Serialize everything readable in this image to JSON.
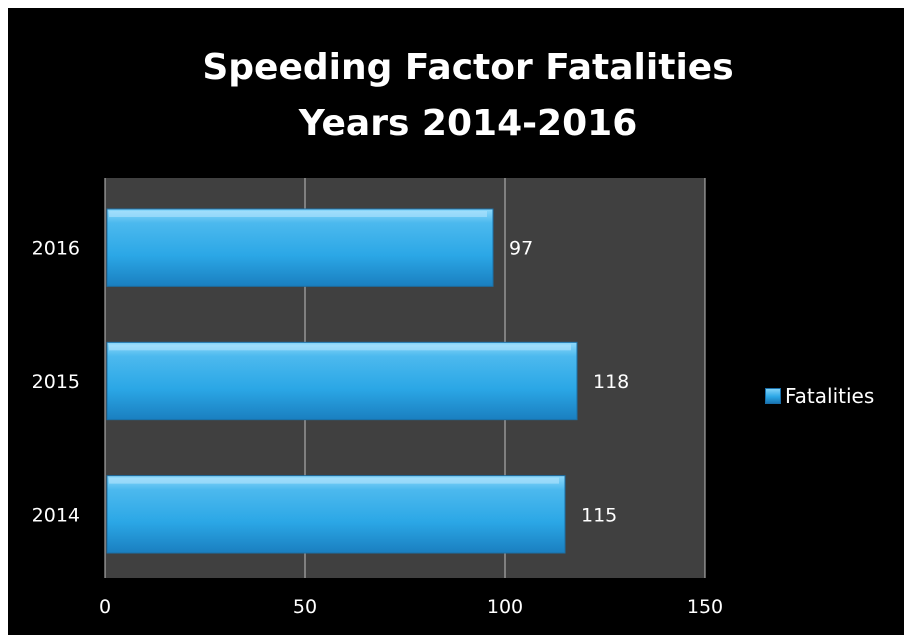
{
  "chart_data": {
    "type": "bar",
    "orientation": "horizontal",
    "title": [
      "Speeding Factor Fatalities",
      "Years 2014-2016"
    ],
    "categories": [
      "2016",
      "2015",
      "2014"
    ],
    "series": [
      {
        "name": "Fatalities",
        "values": [
          97,
          118,
          115
        ]
      }
    ],
    "x_ticks": [
      "0",
      "50",
      "100",
      "150"
    ],
    "xlim": [
      0,
      150
    ],
    "grid": true,
    "legend": "right",
    "colors": {
      "background": "#000000",
      "plot_area": "#404040",
      "bar": "#2ba7e6",
      "text": "#ffffff",
      "gridline": "#bfbfbf"
    }
  }
}
